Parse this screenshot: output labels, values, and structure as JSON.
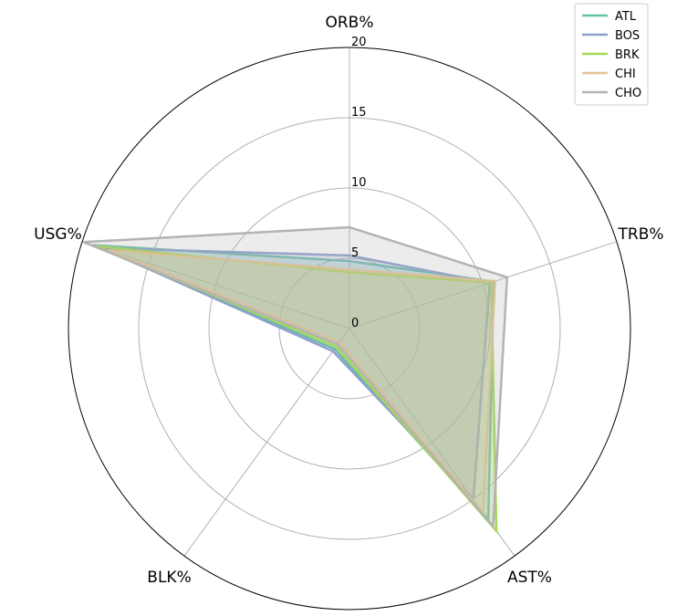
{
  "chart_data": {
    "type": "radar",
    "axes": [
      "ORB%",
      "TRB%",
      "AST%",
      "BLK%",
      "USG%"
    ],
    "rlim": [
      0,
      20
    ],
    "ticks": [
      "0",
      "5",
      "10",
      "15",
      "20"
    ],
    "grid": true,
    "legend_position": "top-right",
    "series": [
      {
        "name": "ATL",
        "color": "#66c2a5",
        "values": [
          4.8,
          10.8,
          16.8,
          1.8,
          19.2
        ]
      },
      {
        "name": "BOS",
        "color": "#8da0cb",
        "values": [
          5.2,
          10.5,
          15.0,
          2.0,
          18.5
        ]
      },
      {
        "name": "BRK",
        "color": "#a6d854",
        "values": [
          4.0,
          10.6,
          17.8,
          1.6,
          19.0
        ]
      },
      {
        "name": "CHI",
        "color": "#e5c494",
        "values": [
          4.2,
          10.9,
          16.2,
          1.2,
          18.0
        ]
      },
      {
        "name": "CHO",
        "color": "#b3b3b3",
        "values": [
          7.2,
          11.8,
          17.4,
          1.4,
          19.9
        ]
      }
    ]
  }
}
